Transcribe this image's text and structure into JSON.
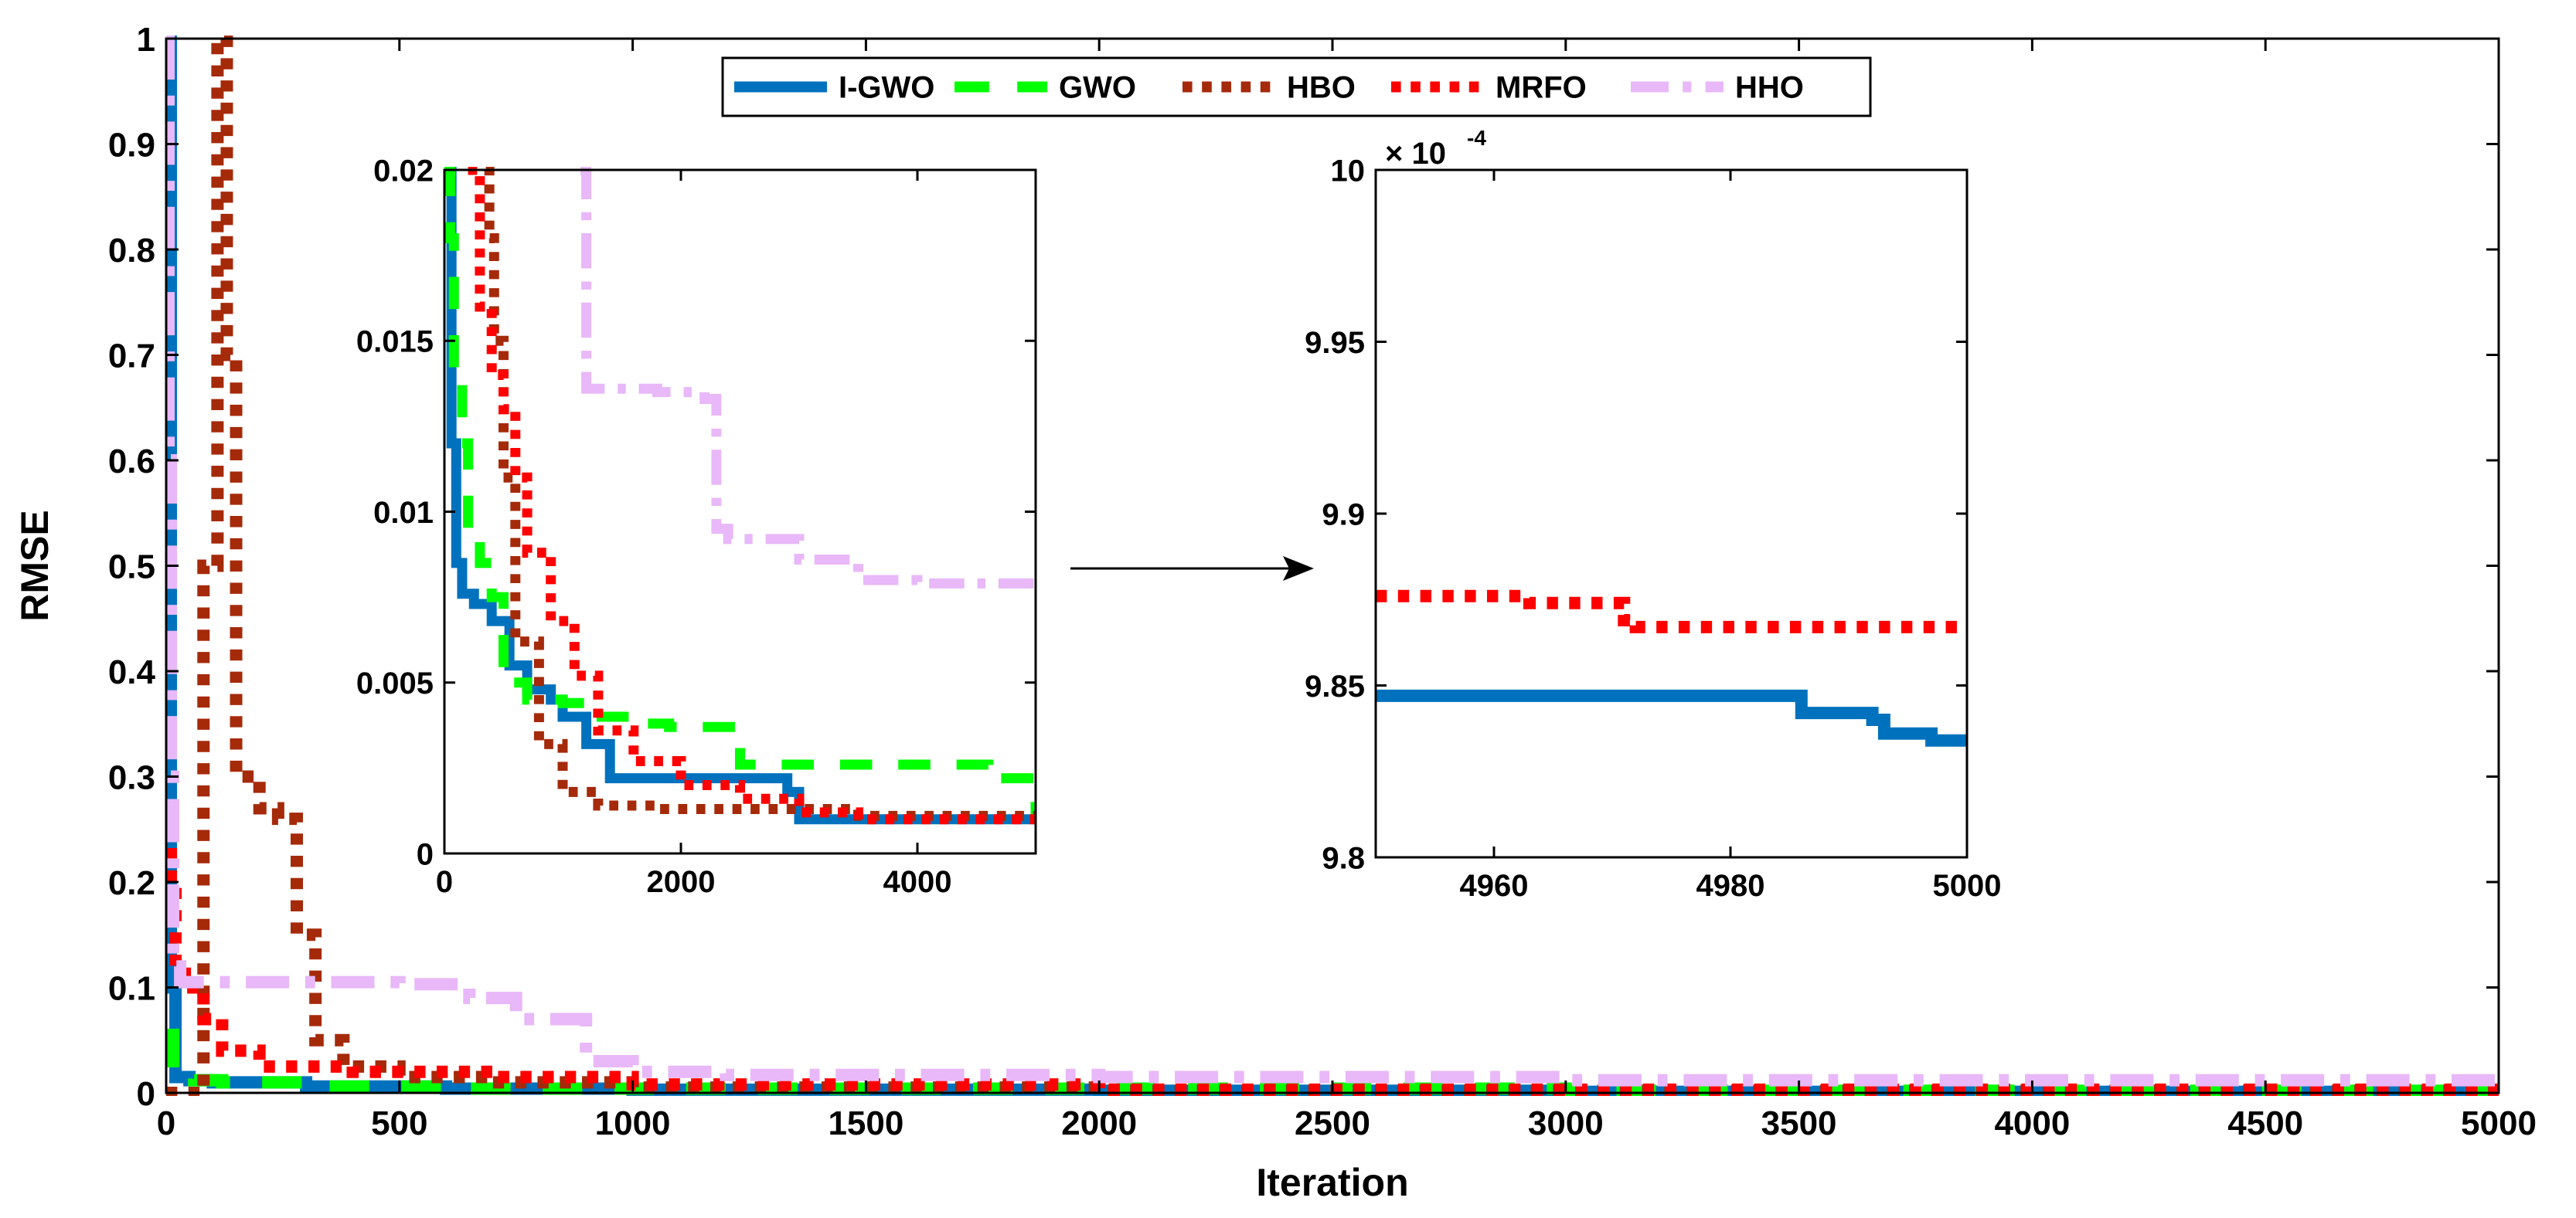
{
  "chart_data": [
    {
      "id": "main",
      "type": "line",
      "xlabel": "Iteration",
      "ylabel": "RMSE",
      "xlim": [
        0,
        5000
      ],
      "ylim": [
        0,
        1
      ],
      "xticks": [
        0,
        500,
        1000,
        1500,
        2000,
        2500,
        3000,
        3500,
        4000,
        4500,
        5000
      ],
      "yticks": [
        0,
        0.1,
        0.2,
        0.3,
        0.4,
        0.5,
        0.6,
        0.7,
        0.8,
        0.9,
        1
      ],
      "ytick_labels": [
        "0",
        "0.1",
        "0.2",
        "0.3",
        "0.4",
        "0.5",
        "0.6",
        "0.7",
        "0.8",
        "0.9",
        "1"
      ],
      "legend_position": "top-center",
      "series": [
        {
          "name": "I-GWO",
          "x": [
            0,
            10,
            20,
            50,
            100,
            300,
            600,
            1000,
            2000,
            3000,
            5000
          ],
          "y": [
            1.0,
            0.1,
            0.015,
            0.012,
            0.01,
            0.006,
            0.004,
            0.003,
            0.002,
            0.001,
            0.001
          ]
        },
        {
          "name": "GWO",
          "x": [
            0,
            15,
            30,
            60,
            120,
            300,
            600,
            1000,
            2000,
            3000,
            5000
          ],
          "y": [
            0.055,
            0.03,
            0.015,
            0.012,
            0.01,
            0.006,
            0.004,
            0.004,
            0.004,
            0.002,
            0.001
          ]
        },
        {
          "name": "HBO",
          "x": [
            0,
            80,
            110,
            130,
            150,
            200,
            240,
            280,
            320,
            380,
            500,
            700,
            1000,
            2000,
            5000
          ],
          "y": [
            0.0,
            0.5,
            1.0,
            0.7,
            0.3,
            0.27,
            0.26,
            0.15,
            0.05,
            0.025,
            0.015,
            0.01,
            0.005,
            0.002,
            0.001
          ]
        },
        {
          "name": "MRFO",
          "x": [
            0,
            10,
            20,
            40,
            80,
            120,
            200,
            400,
            700,
            1000,
            2000,
            5000
          ],
          "y": [
            0.27,
            0.2,
            0.12,
            0.1,
            0.07,
            0.04,
            0.025,
            0.02,
            0.015,
            0.008,
            0.003,
            0.001
          ]
        },
        {
          "name": "HHO",
          "x": [
            0,
            5,
            10,
            15,
            30,
            200,
            500,
            650,
            750,
            900,
            1000,
            1200,
            2000,
            3000,
            5000
          ],
          "y": [
            1.0,
            0.6,
            0.3,
            0.12,
            0.105,
            0.105,
            0.103,
            0.09,
            0.07,
            0.03,
            0.02,
            0.017,
            0.015,
            0.012,
            0.012
          ]
        }
      ]
    },
    {
      "id": "inset1",
      "type": "line",
      "xlim": [
        0,
        5000
      ],
      "ylim": [
        0,
        0.02
      ],
      "xticks": [
        0,
        2000,
        4000
      ],
      "yticks": [
        0,
        0.005,
        0.01,
        0.015,
        0.02
      ],
      "ytick_labels": [
        "0",
        "0.005",
        "0.01",
        "0.015",
        "0.02"
      ],
      "series": [
        {
          "name": "I-GWO",
          "x": [
            0,
            60,
            100,
            150,
            250,
            400,
            550,
            700,
            900,
            1000,
            1200,
            1400,
            2800,
            2900,
            3000,
            5000
          ],
          "y": [
            0.02,
            0.012,
            0.0085,
            0.0076,
            0.0073,
            0.0068,
            0.0055,
            0.0048,
            0.0045,
            0.004,
            0.0032,
            0.0022,
            0.0022,
            0.0018,
            0.001,
            0.001
          ]
        },
        {
          "name": "GWO",
          "x": [
            0,
            50,
            80,
            150,
            200,
            300,
            400,
            500,
            700,
            1000,
            1200,
            1600,
            1900,
            2200,
            2500,
            3200,
            4500,
            4600,
            5000
          ],
          "y": [
            0.02,
            0.018,
            0.014,
            0.012,
            0.0095,
            0.0085,
            0.0075,
            0.005,
            0.0045,
            0.0044,
            0.004,
            0.0038,
            0.0037,
            0.0037,
            0.0026,
            0.0026,
            0.0026,
            0.0022,
            0.001
          ]
        },
        {
          "name": "HBO",
          "x": [
            350,
            380,
            420,
            500,
            600,
            800,
            1000,
            1300,
            1800,
            2500,
            3500,
            5000
          ],
          "y": [
            0.02,
            0.018,
            0.015,
            0.011,
            0.0062,
            0.0032,
            0.0018,
            0.0014,
            0.0013,
            0.0013,
            0.0011,
            0.001
          ]
        },
        {
          "name": "MRFO",
          "x": [
            200,
            300,
            400,
            500,
            600,
            700,
            900,
            1100,
            1300,
            1600,
            2000,
            2500,
            3000,
            3500,
            4500,
            5000
          ],
          "y": [
            0.02,
            0.016,
            0.014,
            0.013,
            0.011,
            0.0088,
            0.0068,
            0.0052,
            0.0036,
            0.0027,
            0.002,
            0.0016,
            0.0012,
            0.001,
            0.001,
            0.0009
          ]
        },
        {
          "name": "HHO",
          "x": [
            1150,
            1200,
            1500,
            1800,
            2200,
            2300,
            2400,
            3000,
            3500,
            4000,
            5000
          ],
          "y": [
            0.02,
            0.0136,
            0.0136,
            0.0135,
            0.0133,
            0.0095,
            0.0092,
            0.0086,
            0.008,
            0.0079,
            0.0079
          ]
        }
      ]
    },
    {
      "id": "inset2",
      "type": "line",
      "xlim": [
        4950,
        5000
      ],
      "ylim": [
        9.8,
        10
      ],
      "xticks": [
        4960,
        4980,
        5000
      ],
      "yticks": [
        9.8,
        9.85,
        9.9,
        9.95,
        10
      ],
      "ytick_labels": [
        "9.8",
        "9.85",
        "9.9",
        "9.95",
        "10"
      ],
      "scale_label": "× 10",
      "scale_exponent": "-4",
      "series": [
        {
          "name": "I-GWO",
          "x": [
            4950,
            4985,
            4986,
            4990,
            4992,
            4993,
            4996,
            4997,
            5000
          ],
          "y": [
            9.847,
            9.847,
            9.842,
            9.842,
            9.84,
            9.836,
            9.836,
            9.834,
            9.833
          ]
        },
        {
          "name": "MRFO",
          "x": [
            4950,
            4962,
            4963,
            4969,
            4971,
            4972,
            5000
          ],
          "y": [
            9.876,
            9.876,
            9.874,
            9.874,
            9.869,
            9.867,
            9.867
          ]
        }
      ]
    }
  ],
  "legend": [
    {
      "name": "I-GWO",
      "color": "#0072BD",
      "style": "solid"
    },
    {
      "name": "GWO",
      "color": "#00FF00",
      "style": "dashed"
    },
    {
      "name": "HBO",
      "color": "#A52A0A",
      "style": "dotted"
    },
    {
      "name": "MRFO",
      "color": "#FF0000",
      "style": "dotted"
    },
    {
      "name": "HHO",
      "color": "#E8B8F8",
      "style": "dashdot"
    }
  ]
}
